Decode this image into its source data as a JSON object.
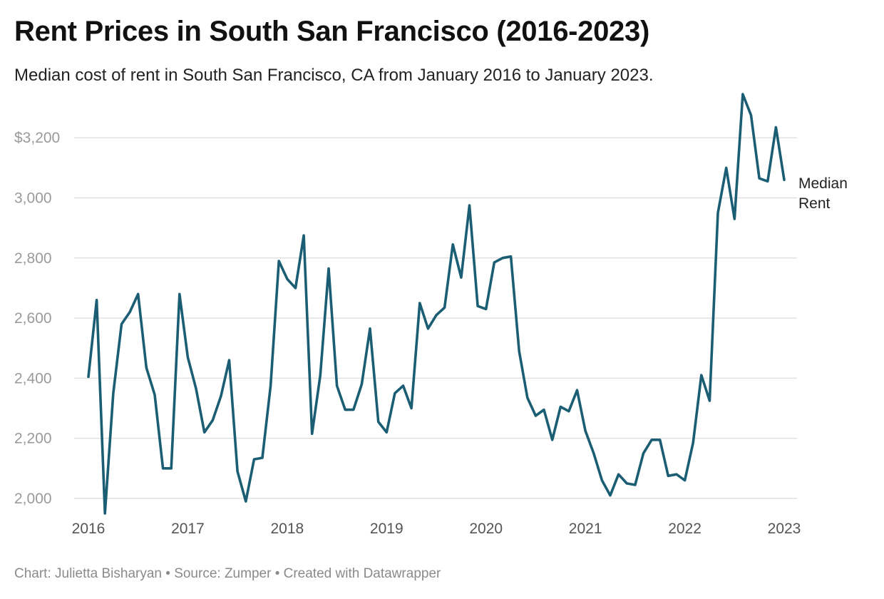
{
  "header": {
    "title": "Rent Prices in South San Francisco (2016-2023)",
    "subtitle": "Median cost of rent in South San Francisco, CA from January 2016 to January 2023."
  },
  "footer": {
    "credit": "Chart: Julietta Bisharyan • Source: Zumper • Created with Datawrapper"
  },
  "colors": {
    "line": "#1b5e74"
  },
  "chart_data": {
    "type": "line",
    "title": "Rent Prices in South San Francisco (2016-2023)",
    "subtitle": "Median cost of rent in South San Francisco, CA from January 2016 to January 2023.",
    "xlabel": "",
    "ylabel": "",
    "x_start": "2016-01",
    "x_end": "2023-01",
    "x_ticks": [
      {
        "value": "2016-01",
        "label": "2016"
      },
      {
        "value": "2017-01",
        "label": "2017"
      },
      {
        "value": "2018-01",
        "label": "2018"
      },
      {
        "value": "2019-01",
        "label": "2019"
      },
      {
        "value": "2020-01",
        "label": "2020"
      },
      {
        "value": "2021-01",
        "label": "2021"
      },
      {
        "value": "2022-01",
        "label": "2022"
      },
      {
        "value": "2023-01",
        "label": "2023"
      }
    ],
    "y_ticks": [
      {
        "value": 2000,
        "label": "2,000"
      },
      {
        "value": 2200,
        "label": "2,200"
      },
      {
        "value": 2400,
        "label": "2,400"
      },
      {
        "value": 2600,
        "label": "2,600"
      },
      {
        "value": 2800,
        "label": "2,800"
      },
      {
        "value": 3000,
        "label": "3,000"
      },
      {
        "value": 3200,
        "label": "$3,200"
      }
    ],
    "ylim": [
      1950,
      3350
    ],
    "grid": true,
    "legend": "inline label at line end",
    "series": [
      {
        "name": "Median Rent",
        "label_lines": [
          "Median",
          "Rent"
        ],
        "x": [
          "2016-01",
          "2016-02",
          "2016-03",
          "2016-04",
          "2016-05",
          "2016-06",
          "2016-07",
          "2016-08",
          "2016-09",
          "2016-10",
          "2016-11",
          "2016-12",
          "2017-01",
          "2017-02",
          "2017-03",
          "2017-04",
          "2017-05",
          "2017-06",
          "2017-07",
          "2017-08",
          "2017-09",
          "2017-10",
          "2017-11",
          "2017-12",
          "2018-01",
          "2018-02",
          "2018-03",
          "2018-04",
          "2018-05",
          "2018-06",
          "2018-07",
          "2018-08",
          "2018-09",
          "2018-10",
          "2018-11",
          "2018-12",
          "2019-01",
          "2019-02",
          "2019-03",
          "2019-04",
          "2019-05",
          "2019-06",
          "2019-07",
          "2019-08",
          "2019-09",
          "2019-10",
          "2019-11",
          "2019-12",
          "2020-01",
          "2020-02",
          "2020-03",
          "2020-04",
          "2020-05",
          "2020-06",
          "2020-07",
          "2020-08",
          "2020-09",
          "2020-10",
          "2020-11",
          "2020-12",
          "2021-01",
          "2021-02",
          "2021-03",
          "2021-04",
          "2021-05",
          "2021-06",
          "2021-07",
          "2021-08",
          "2021-09",
          "2021-10",
          "2021-11",
          "2021-12",
          "2022-01",
          "2022-02",
          "2022-03",
          "2022-04",
          "2022-05",
          "2022-06",
          "2022-07",
          "2022-08",
          "2022-09",
          "2022-10",
          "2022-11",
          "2022-12",
          "2023-01"
        ],
        "values": [
          2405,
          2660,
          1950,
          2350,
          2580,
          2620,
          2680,
          2435,
          2345,
          2100,
          2100,
          2680,
          2470,
          2365,
          2220,
          2260,
          2340,
          2460,
          2090,
          1990,
          2130,
          2135,
          2375,
          2790,
          2730,
          2700,
          2875,
          2215,
          2410,
          2765,
          2375,
          2295,
          2295,
          2380,
          2565,
          2255,
          2220,
          2350,
          2375,
          2300,
          2650,
          2565,
          2610,
          2635,
          2845,
          2735,
          2975,
          2640,
          2630,
          2785,
          2800,
          2805,
          2490,
          2335,
          2275,
          2295,
          2195,
          2305,
          2290,
          2360,
          2225,
          2150,
          2060,
          2010,
          2080,
          2050,
          2045,
          2150,
          2195,
          2195,
          2075,
          2080,
          2060,
          2185,
          2410,
          2325,
          2950,
          3100,
          2930,
          3345,
          3275,
          3065,
          3055,
          3235,
          3060
        ]
      }
    ]
  }
}
